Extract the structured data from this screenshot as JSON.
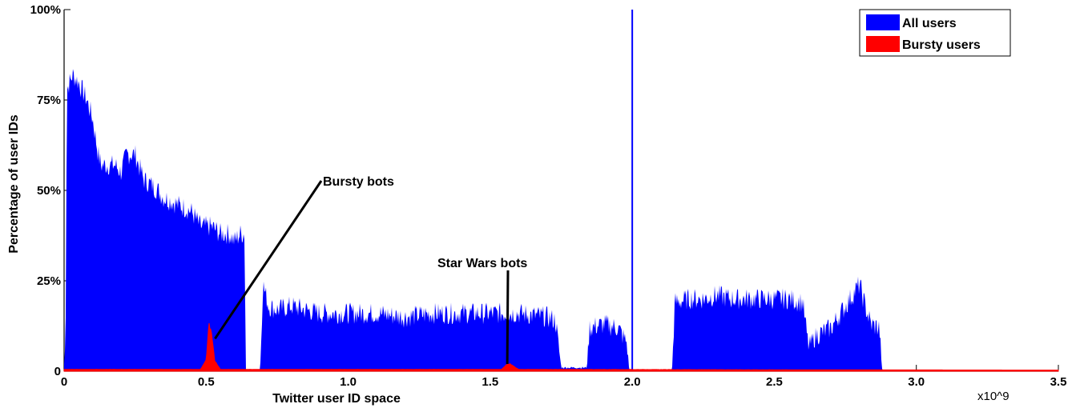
{
  "chart_data": {
    "type": "area",
    "xlabel": "Twitter user ID space",
    "ylabel": "Percentage of user IDs",
    "x_multiplier": "x10^9",
    "xlim": [
      0,
      3.5
    ],
    "ylim": [
      0,
      100
    ],
    "x_ticks": [
      "0",
      "0.5",
      "1.0",
      "1.5",
      "2.0",
      "2.5",
      "3.0",
      "3.5"
    ],
    "y_ticks": [
      "0",
      "25%",
      "50%",
      "75%",
      "100%"
    ],
    "grid": false,
    "legend_position": "top-right",
    "colors": {
      "all": "#0000ff",
      "bursty": "#ff0000"
    },
    "series": [
      {
        "name": "All users",
        "color": "#0000ff",
        "x": [
          0.0,
          0.005,
          0.01,
          0.02,
          0.03,
          0.05,
          0.08,
          0.1,
          0.12,
          0.13,
          0.15,
          0.18,
          0.2,
          0.22,
          0.25,
          0.28,
          0.3,
          0.33,
          0.35,
          0.38,
          0.4,
          0.43,
          0.45,
          0.48,
          0.5,
          0.52,
          0.55,
          0.58,
          0.6,
          0.62,
          0.635,
          0.64,
          0.69,
          0.7,
          0.72,
          0.75,
          0.8,
          0.85,
          0.9,
          0.95,
          1.0,
          1.1,
          1.2,
          1.3,
          1.4,
          1.5,
          1.6,
          1.7,
          1.73,
          1.75,
          1.76,
          1.8,
          1.84,
          1.85,
          1.9,
          1.95,
          1.98,
          1.99,
          2.14,
          2.15,
          2.2,
          2.25,
          2.3,
          2.35,
          2.4,
          2.45,
          2.5,
          2.55,
          2.6,
          2.62,
          2.65,
          2.7,
          2.75,
          2.8,
          2.82,
          2.84,
          2.87,
          2.88,
          3.5
        ],
        "values": [
          2,
          8,
          78,
          80,
          82,
          80,
          75,
          70,
          60,
          57,
          57,
          57,
          55,
          60,
          60,
          53,
          52,
          50,
          48,
          47,
          46,
          45,
          44,
          40,
          40,
          40,
          38,
          38,
          36,
          38,
          38,
          0,
          0,
          24,
          18,
          17,
          18,
          17,
          16,
          16,
          16,
          16,
          15,
          16,
          16,
          16,
          16,
          15,
          14,
          1,
          1,
          1,
          1,
          12,
          13,
          12,
          8,
          0,
          0,
          19,
          20,
          20,
          21,
          20,
          20,
          20,
          20,
          20,
          19,
          7,
          10,
          12,
          18,
          24,
          18,
          13,
          12,
          0,
          0
        ]
      },
      {
        "name": "Bursty users",
        "color": "#ff0000",
        "x": [
          0.0,
          0.48,
          0.5,
          0.51,
          0.52,
          0.53,
          0.55,
          1.54,
          1.56,
          1.57,
          1.6,
          3.5
        ],
        "values": [
          0.5,
          0.5,
          3,
          13,
          10,
          3,
          0.5,
          0.5,
          2,
          2,
          0.5,
          0.3
        ]
      }
    ],
    "spike": {
      "x": 2.0,
      "value": 100,
      "series": "All users"
    },
    "annotations": [
      {
        "text": "Bursty bots",
        "x": 0.52,
        "value": 9
      },
      {
        "text": "Star Wars bots",
        "x": 1.56,
        "value": 2
      }
    ]
  }
}
